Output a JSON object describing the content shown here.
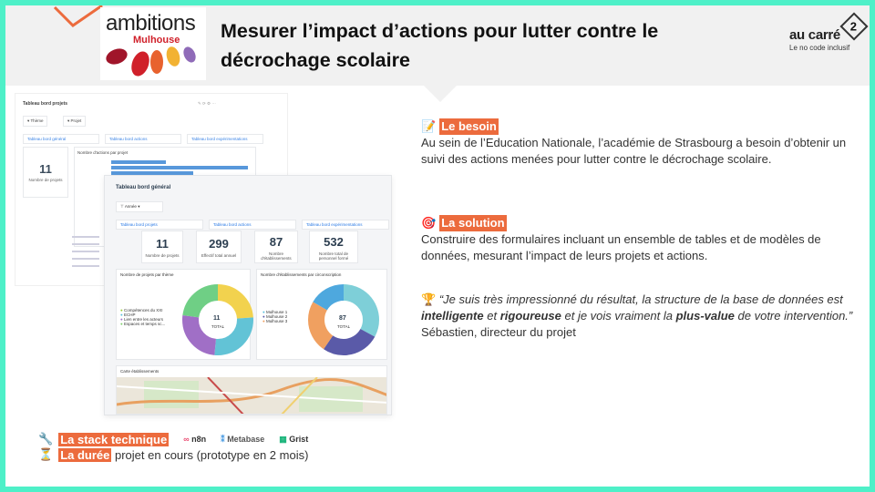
{
  "header": {
    "title": "Mesurer l’impact d’actions pour lutter contre le décrochage scolaire",
    "client_logo": {
      "name": "ambitions",
      "sub": "Mulhouse"
    },
    "brand": {
      "name": "au carré",
      "exponent": "2",
      "tagline": "Le no code inclusif"
    }
  },
  "colors": {
    "accent": "#ec6b3d",
    "frame": "#4ef0c8",
    "header_bg": "#f1f1f1"
  },
  "back_screenshot": {
    "title": "Tableau bord projets",
    "filters": [
      "Thème",
      "Projet"
    ],
    "tabs": [
      "Tableau bord général",
      "Tableau bord actions",
      "Tableau bord expérimentations"
    ],
    "kpi_value": "11",
    "kpi_label": "Nombre de projets",
    "chart_title": "Nombre d'actions par projet"
  },
  "front_screenshot": {
    "title": "Tableau bord général",
    "filter": "Année",
    "tabs": [
      "Tableau bord projets",
      "Tableau bord actions",
      "Tableau bord expérimentations"
    ],
    "kpis": [
      {
        "value": "11",
        "label": "Nombre de projets"
      },
      {
        "value": "299",
        "label": "Effectif total annuel"
      },
      {
        "value": "87",
        "label": "Nombre d'établissements"
      },
      {
        "value": "532",
        "label": "Nombre total de personnel formé"
      }
    ],
    "donut_left": {
      "title": "Nombre de projets par thème",
      "center": "11",
      "center_sub": "TOTAL"
    },
    "donut_right": {
      "title": "Nombre d'établissements par circonscription",
      "center": "87",
      "center_sub": "TOTAL"
    },
    "map_title": "Carte établissements"
  },
  "besoin": {
    "icon": "memo-icon",
    "label": "Le besoin",
    "text": "Au sein de l’Education Nationale, l’académie de Strasbourg a besoin d’obtenir un suivi des actions menées pour lutter contre le décrochage scolaire."
  },
  "solution": {
    "icon": "target-icon",
    "label": "La solution",
    "text": "Construire des formulaires incluant un ensemble de tables et de modèles de données, mesurant l’impact de leurs projets et actions."
  },
  "testimonial": {
    "icon": "trophy-icon",
    "q1": "“Je suis très impressionné du résultat, la structure de la base de données est ",
    "b1": "intelligente",
    "q2": " et ",
    "b2": "rigoureuse",
    "q3": " et je vois vraiment la ",
    "b3": "plus-value",
    "q4": " de votre intervention.”",
    "author": "Sébastien, directeur du projet"
  },
  "stack": {
    "icon": "wrench-icon",
    "label": "La stack technique",
    "tools": [
      "n8n",
      "Metabase",
      "Grist"
    ]
  },
  "duree": {
    "icon": "hourglass-icon",
    "label": "La durée",
    "text": " projet en cours (prototype en 2 mois)"
  }
}
